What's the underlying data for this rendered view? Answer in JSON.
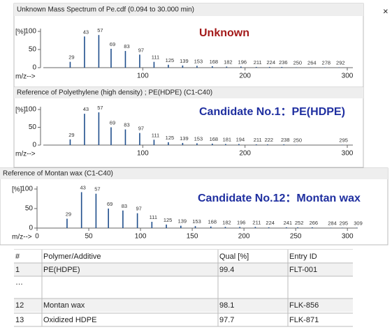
{
  "chart_data": [
    {
      "type": "bar",
      "header": "Unknown Mass Spectrum of Pe.cdf (0.094 to 30.000 min)",
      "title": "Unknown",
      "title_color": "#a31a1a",
      "xlabel": "m/z-->",
      "ylabel": "[%]",
      "color": "#1f4e8c",
      "x": [
        29,
        43,
        57,
        69,
        83,
        97,
        111,
        125,
        139,
        153,
        168,
        182,
        196,
        211,
        224,
        236,
        250,
        264,
        278,
        292
      ],
      "values": [
        16,
        86,
        90,
        52,
        46,
        36,
        16,
        8,
        6,
        5,
        4,
        3,
        3,
        2,
        2,
        2,
        1,
        1,
        1,
        1
      ],
      "xlim": [
        0,
        300
      ],
      "ylim": [
        0,
        100
      ],
      "xticks": [
        100,
        200,
        300
      ],
      "yticks": [
        0,
        50,
        100
      ]
    },
    {
      "type": "bar",
      "header": "Reference of Polyethylene (high density) ; PE(HDPE) (C1-C40)",
      "title": "Candidate No.1：PE(HDPE)",
      "title_color": "#1f2fa0",
      "xlabel": "m/z-->",
      "ylabel": "[%]",
      "color": "#1f4e8c",
      "x": [
        29,
        43,
        57,
        69,
        83,
        97,
        111,
        125,
        139,
        153,
        168,
        181,
        194,
        211,
        222,
        238,
        250,
        295
      ],
      "values": [
        16,
        88,
        92,
        50,
        44,
        34,
        15,
        8,
        6,
        5,
        4,
        3,
        3,
        2,
        2,
        2,
        1,
        1
      ],
      "xlim": [
        0,
        300
      ],
      "ylim": [
        0,
        100
      ],
      "xticks": [
        100,
        200,
        300
      ],
      "yticks": [
        0,
        50,
        100
      ]
    },
    {
      "type": "bar",
      "header": "Reference of Montan wax (C1-C40)",
      "title": "Candidate No.12：Montan wax",
      "title_color": "#1f2fa0",
      "xlabel": "m/z-->",
      "ylabel": "[%]",
      "color": "#1f4e8c",
      "x": [
        29,
        43,
        57,
        69,
        83,
        97,
        111,
        125,
        139,
        153,
        168,
        182,
        196,
        211,
        224,
        241,
        252,
        266,
        284,
        295,
        309
      ],
      "values": [
        24,
        92,
        88,
        50,
        45,
        38,
        16,
        9,
        6,
        5,
        4,
        3,
        3,
        3,
        2,
        2,
        2,
        2,
        1,
        1,
        1
      ],
      "xlim": [
        0,
        310
      ],
      "ylim": [
        0,
        100
      ],
      "xticks": [
        0,
        50,
        100,
        150,
        200,
        250,
        300
      ],
      "yticks": [
        0,
        50,
        100
      ]
    }
  ],
  "table": {
    "columns": [
      "#",
      "Polymer/Additive",
      "Qual [%]",
      "Entry ID"
    ],
    "rows": [
      [
        "1",
        "PE(HDPE)",
        "99.4",
        "FLT-001"
      ],
      [
        "…"
      ],
      [
        "12",
        "Montan wax",
        "98.1",
        "FLK-856"
      ],
      [
        "13",
        "Oxidized HDPE",
        "97.7",
        "FLK-871"
      ]
    ]
  }
}
